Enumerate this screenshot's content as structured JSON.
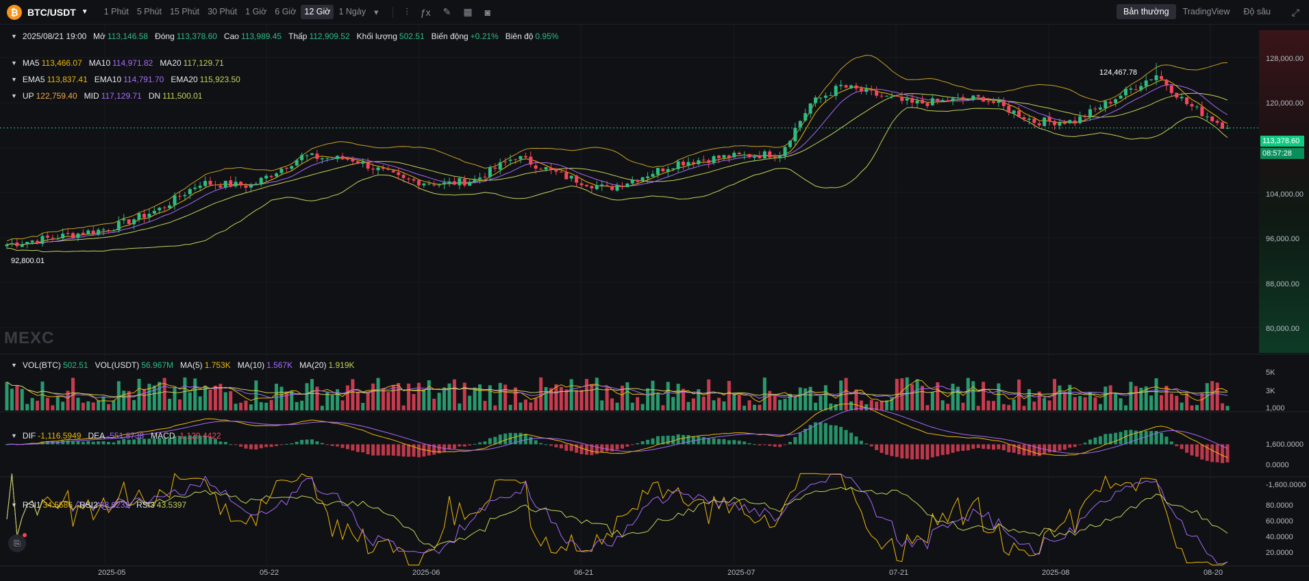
{
  "header": {
    "coin_icon": "bitcoin-icon",
    "coin_glyph": "₿",
    "pair": "BTC/USDT",
    "intervals": [
      "1 Phút",
      "5 Phút",
      "15 Phút",
      "30 Phút",
      "1 Giờ",
      "6 Giờ",
      "12 Giờ",
      "1 Ngày"
    ],
    "active_interval": "12 Giờ",
    "views": [
      "Bản thường",
      "TradingView",
      "Độ sâu"
    ],
    "active_view": "Bản thường"
  },
  "ohlc": {
    "date": "2025/08/21 19:00",
    "open_label": "Mở",
    "open": "113,146.58",
    "close_label": "Đóng",
    "close": "113,378.60",
    "high_label": "Cao",
    "high": "113,989.45",
    "low_label": "Thấp",
    "low": "112,909.52",
    "vol_label": "Khối lượng",
    "vol": "502.51",
    "change_label": "Biến động",
    "change": "+0.21%",
    "amp_label": "Biên độ",
    "amp": "0.95%"
  },
  "ma": {
    "l1": "MA5",
    "v1": "113,466.07",
    "l2": "MA10",
    "v2": "114,971.82",
    "l3": "MA20",
    "v3": "117,129.71"
  },
  "ema": {
    "l1": "EMA5",
    "v1": "113,837.41",
    "l2": "EMA10",
    "v2": "114,791.70",
    "l3": "EMA20",
    "v3": "115,923.50"
  },
  "boll": {
    "l1": "UP",
    "v1": "122,759.40",
    "l2": "MID",
    "v2": "117,129.71",
    "l3": "DN",
    "v3": "111,500.01"
  },
  "vol": {
    "l1": "VOL(BTC)",
    "v1": "502.51",
    "l2": "VOL(USDT)",
    "v2": "56.967M",
    "l3": "MA(5)",
    "v3": "1.753K",
    "l4": "MA(10)",
    "v4": "1.567K",
    "l5": "MA(20)",
    "v5": "1.919K"
  },
  "macd": {
    "l1": "DIF",
    "v1": "-1,116.5949",
    "l2": "DEA",
    "v2": "-551.8738",
    "l3": "MACD",
    "v3": "-1,129.4422"
  },
  "rsi": {
    "l1": "RSI1",
    "v1": "34.5586",
    "l2": "RSI2",
    "v2": "38.6232",
    "l3": "RSI3",
    "v3": "43.5397"
  },
  "price_axis": [
    "128,000.00",
    "120,000.00",
    "104,000.00",
    "96,000.00",
    "88,000.00",
    "80,000.00"
  ],
  "vol_axis": [
    "5K",
    "3K",
    "1,000"
  ],
  "macd_axis": [
    "1,600.0000",
    "0.0000",
    "-1,600.0000"
  ],
  "rsi_axis": [
    "80.0000",
    "60.0000",
    "40.0000",
    "20.0000"
  ],
  "x_axis": [
    "2025-05",
    "05-22",
    "2025-06",
    "06-21",
    "2025-07",
    "07-21",
    "2025-08",
    "08-20"
  ],
  "current_price": "113,378.60",
  "countdown": "08:57:28",
  "high_marker": "124,467.78",
  "low_marker": "92,800.01",
  "watermark": "MEXC",
  "colors": {
    "up": "#2ebd85",
    "down": "#f6465d",
    "ma5": "#f0b90b",
    "ma10": "#a66bff",
    "ma20": "#c6d35a",
    "boll": "#c9a227"
  },
  "chart_data": {
    "type": "candlestick",
    "anchors_close": [
      [
        "2025-04-23",
        93500
      ],
      [
        "2025-04-28",
        94800
      ],
      [
        "2025-05-03",
        96200
      ],
      [
        "2025-05-08",
        99500
      ],
      [
        "2025-05-12",
        104000
      ],
      [
        "2025-05-17",
        103500
      ],
      [
        "2025-05-22",
        108500
      ],
      [
        "2025-05-27",
        108000
      ],
      [
        "2025-06-01",
        104500
      ],
      [
        "2025-06-05",
        103800
      ],
      [
        "2025-06-08",
        104500
      ],
      [
        "2025-06-12",
        108500
      ],
      [
        "2025-06-17",
        105000
      ],
      [
        "2025-06-21",
        103000
      ],
      [
        "2025-06-24",
        104800
      ],
      [
        "2025-06-28",
        107500
      ],
      [
        "2025-07-03",
        108500
      ],
      [
        "2025-07-08",
        109000
      ],
      [
        "2025-07-11",
        117500
      ],
      [
        "2025-07-14",
        120500
      ],
      [
        "2025-07-21",
        117500
      ],
      [
        "2025-07-28",
        118500
      ],
      [
        "2025-08-02",
        114500
      ],
      [
        "2025-08-06",
        114500
      ],
      [
        "2025-08-10",
        118500
      ],
      [
        "2025-08-14",
        122500
      ],
      [
        "2025-08-17",
        117500
      ],
      [
        "2025-08-21",
        113378.6
      ]
    ],
    "high": 124467.78,
    "low": 92800.01,
    "ylim": [
      75000,
      131000
    ]
  }
}
